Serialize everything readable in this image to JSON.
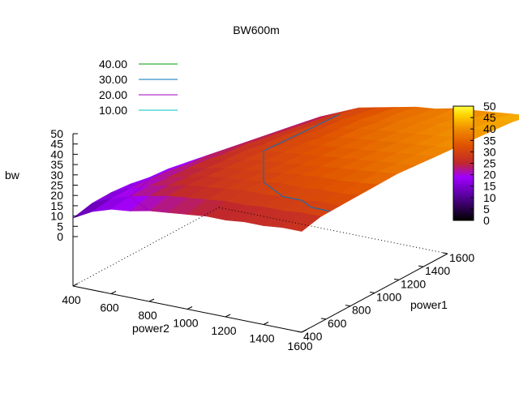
{
  "chart_data": {
    "type": "surface3d",
    "title": "BW600m",
    "xlabel": "power1",
    "ylabel": "power2",
    "zlabel": "bw",
    "x": [
      400,
      500,
      600,
      700,
      800,
      900,
      1000,
      1100,
      1200,
      1300,
      1400,
      1500,
      1600
    ],
    "y": [
      400,
      500,
      600,
      700,
      800,
      900,
      1000,
      1100,
      1200,
      1300,
      1400,
      1500,
      1600
    ],
    "xlim": [
      400,
      1600
    ],
    "ylim": [
      400,
      1600
    ],
    "zlim": [
      0,
      50
    ],
    "x_ticks": [
      "400",
      "600",
      "800",
      "1000",
      "1200",
      "1400",
      "1600"
    ],
    "y_ticks": [
      "400",
      "600",
      "800",
      "1000",
      "1200",
      "1400",
      "1600"
    ],
    "z_ticks": [
      "0",
      "5",
      "10",
      "15",
      "20",
      "25",
      "30",
      "35",
      "40",
      "45",
      "50"
    ],
    "colorbar": {
      "range": [
        0,
        50
      ],
      "ticks": [
        "0",
        "5",
        "10",
        "15",
        "20",
        "25",
        "30",
        "35",
        "40",
        "45",
        "50"
      ],
      "palette": [
        "#000000",
        "#5a00a0",
        "#a000ff",
        "#c0282c",
        "#e05400",
        "#f08c00",
        "#ffd200",
        "#ffff40"
      ]
    },
    "contours": [
      {
        "level": "40.00",
        "color": "#009900"
      },
      {
        "level": "30.00",
        "color": "#0072bd"
      },
      {
        "level": "20.00",
        "color": "#a000c0"
      },
      {
        "level": "10.00",
        "color": "#00c0c0"
      }
    ],
    "legend_position": "top-left",
    "surface": [
      [
        9,
        14,
        17,
        18,
        20,
        21,
        22,
        23,
        23,
        24,
        24,
        25,
        25
      ],
      [
        13,
        17,
        20,
        22,
        24,
        25,
        26,
        27,
        27,
        28,
        28,
        29,
        29
      ],
      [
        15,
        19,
        22,
        24,
        26,
        27,
        28,
        29,
        29,
        30,
        30,
        31,
        31
      ],
      [
        16,
        20,
        23,
        25,
        27,
        28,
        29,
        30,
        31,
        31,
        32,
        32,
        33
      ],
      [
        16,
        21,
        24,
        26,
        28,
        29,
        30,
        31,
        32,
        33,
        33,
        34,
        35
      ],
      [
        17,
        21,
        25,
        27,
        29,
        30,
        31,
        32,
        33,
        34,
        35,
        36,
        37
      ],
      [
        17,
        22,
        25,
        28,
        30,
        31,
        32,
        33,
        34,
        35,
        36,
        37,
        38
      ],
      [
        17,
        22,
        26,
        28,
        30,
        32,
        33,
        34,
        35,
        36,
        37,
        38,
        39
      ],
      [
        17,
        22,
        26,
        29,
        31,
        32,
        34,
        35,
        36,
        37,
        38,
        39,
        40
      ],
      [
        17,
        22,
        26,
        29,
        31,
        33,
        35,
        36,
        37,
        38,
        39,
        40,
        41
      ],
      [
        17,
        22,
        26,
        29,
        32,
        34,
        35,
        37,
        38,
        39,
        40,
        41,
        42
      ],
      [
        17,
        22,
        26,
        30,
        32,
        34,
        36,
        37,
        38,
        39,
        41,
        42,
        43
      ],
      [
        17,
        22,
        26,
        30,
        32,
        34,
        36,
        37,
        39,
        40,
        41,
        42,
        43
      ]
    ]
  }
}
